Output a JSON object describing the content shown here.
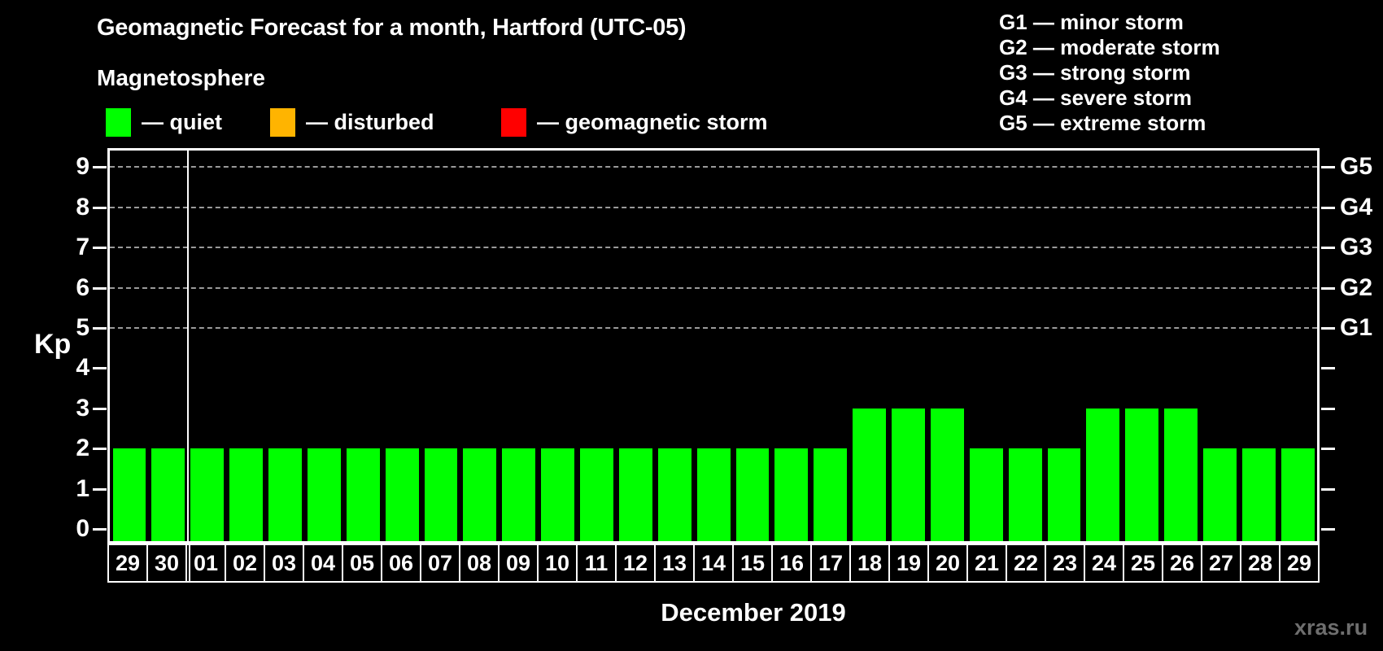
{
  "title": "Geomagnetic Forecast for a month, Hartford (UTC-05)",
  "subtitle": "Magnetosphere",
  "watermark": "xras.ru",
  "legend": {
    "items": [
      {
        "id": "quiet",
        "label": "— quiet",
        "color": "#00FF00"
      },
      {
        "id": "disturbed",
        "label": "— disturbed",
        "color": "#FFB400"
      },
      {
        "id": "storm",
        "label": "— geomagnetic storm",
        "color": "#FF0000"
      }
    ]
  },
  "storm_scale": [
    "G1 — minor storm",
    "G2 — moderate storm",
    "G3 — strong storm",
    "G4 — severe storm",
    "G5 — extreme storm"
  ],
  "chart_data": {
    "type": "bar",
    "title": "Geomagnetic Forecast for a month, Hartford (UTC-05)",
    "xlabel": "December 2019",
    "ylabel": "Kp",
    "ylim": [
      0,
      9
    ],
    "yticks": [
      0,
      1,
      2,
      3,
      4,
      5,
      6,
      7,
      8,
      9
    ],
    "gridlines_at_kp": [
      5,
      6,
      7,
      8,
      9
    ],
    "grid": "dashed-horizontal-only",
    "legend_position": "top-left",
    "right_axis": {
      "labels": [
        "G1",
        "G2",
        "G3",
        "G4",
        "G5"
      ],
      "at_kp": [
        5,
        6,
        7,
        8,
        9
      ]
    },
    "bar_color": "#00FF00",
    "categories": [
      "29",
      "30",
      "01",
      "02",
      "03",
      "04",
      "05",
      "06",
      "07",
      "08",
      "09",
      "10",
      "11",
      "12",
      "13",
      "14",
      "15",
      "16",
      "17",
      "18",
      "19",
      "20",
      "21",
      "22",
      "23",
      "24",
      "25",
      "26",
      "27",
      "28",
      "29"
    ],
    "values": [
      2,
      2,
      2,
      2,
      2,
      2,
      2,
      2,
      2,
      2,
      2,
      2,
      2,
      2,
      2,
      2,
      2,
      2,
      2,
      3,
      3,
      3,
      2,
      2,
      2,
      3,
      3,
      3,
      2,
      2,
      2
    ],
    "month_separator_after_index": 1
  }
}
